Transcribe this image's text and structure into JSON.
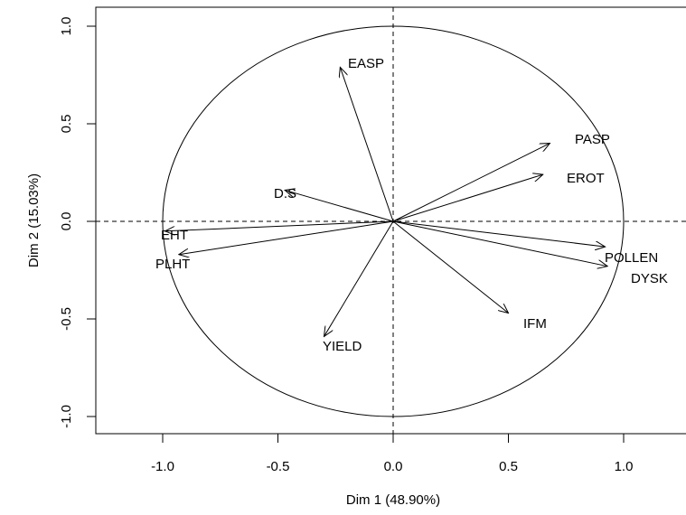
{
  "chart_data": {
    "type": "scatter",
    "subtype": "pca-variable-correlation-circle",
    "title": "",
    "xlabel": "Dim 1 (48.90%)",
    "ylabel": "Dim 2 (15.03%)",
    "xlim": [
      -1.25,
      1.25
    ],
    "ylim": [
      -1.08,
      1.08
    ],
    "xticks": [
      -1.0,
      -0.5,
      0.0,
      0.5,
      1.0
    ],
    "yticks": [
      -1.0,
      -0.5,
      0.0,
      0.5,
      1.0
    ],
    "xtick_labels": [
      "-1.0",
      "-0.5",
      "0.0",
      "0.5",
      "1.0"
    ],
    "ytick_labels": [
      "-1.0",
      "-0.5",
      "0.0",
      "0.5",
      "1.0"
    ],
    "unit_circle": true,
    "reference_lines": [
      "x=0 dashed",
      "y=0 dashed"
    ],
    "grid": false,
    "arrows": [
      {
        "label": "EASP",
        "x": -0.23,
        "y": 0.79
      },
      {
        "label": "PASP",
        "x": 0.68,
        "y": 0.4
      },
      {
        "label": "EROT",
        "x": 0.65,
        "y": 0.24
      },
      {
        "label": "D.S",
        "x": -0.47,
        "y": 0.16
      },
      {
        "label": "EHT",
        "x": -0.99,
        "y": -0.05
      },
      {
        "label": "PLHT",
        "x": -0.93,
        "y": -0.17
      },
      {
        "label": "POLLEN",
        "x": 0.92,
        "y": -0.13
      },
      {
        "label": "DYSK",
        "x": 0.93,
        "y": -0.23
      },
      {
        "label": "IFM",
        "x": 0.5,
        "y": -0.47
      },
      {
        "label": "YIELD",
        "x": -0.3,
        "y": -0.59
      }
    ]
  }
}
